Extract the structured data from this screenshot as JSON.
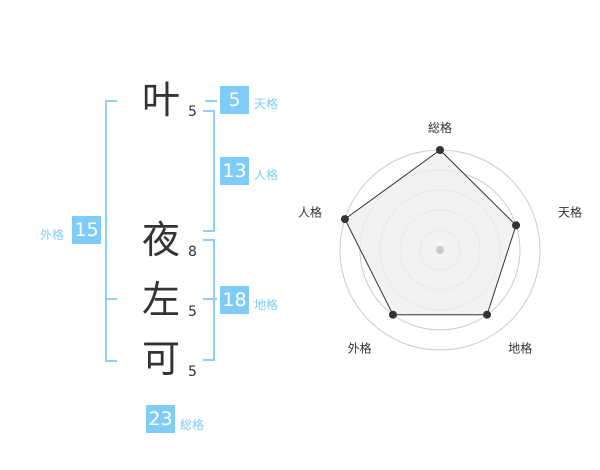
{
  "characters": [
    {
      "char": "叶",
      "strokes": "5"
    },
    {
      "char": "夜",
      "strokes": "8"
    },
    {
      "char": "左",
      "strokes": "5"
    },
    {
      "char": "可",
      "strokes": "5"
    }
  ],
  "fortunes": {
    "tenkaku": {
      "label": "天格",
      "value": "5"
    },
    "jinkaku": {
      "label": "人格",
      "value": "13"
    },
    "chikaku": {
      "label": "地格",
      "value": "18"
    },
    "gaikaku": {
      "label": "外格",
      "value": "15"
    },
    "soukaku": {
      "label": "総格",
      "value": "23"
    }
  },
  "colors": {
    "accent": "#7fccf8",
    "ring": "#cccccc",
    "fill": "#efefef",
    "line": "#333333"
  },
  "chart_data": {
    "type": "radar",
    "categories": [
      "総格",
      "天格",
      "地格",
      "外格",
      "人格"
    ],
    "values": [
      5,
      4,
      4,
      4,
      5
    ],
    "range": [
      0,
      5
    ],
    "grid": true
  }
}
